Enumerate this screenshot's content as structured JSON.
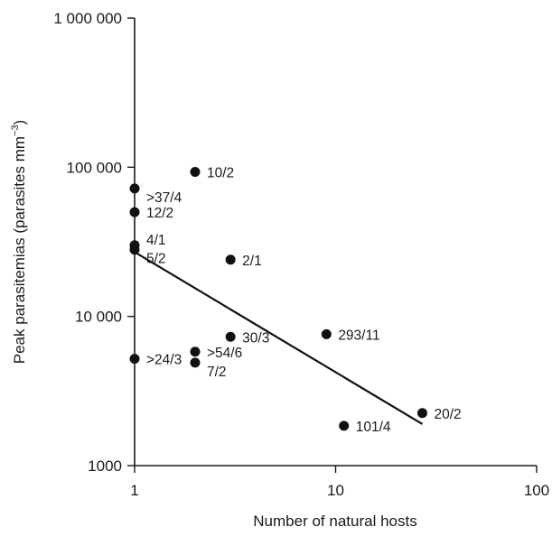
{
  "chart_data": {
    "type": "scatter",
    "xlabel": "Number of natural hosts",
    "ylabel_main": "Peak parasitemias (parasites mm",
    "ylabel_sup": "−3",
    "ylabel_close": ")",
    "xscale": "log",
    "yscale": "log",
    "xlim": [
      1,
      100
    ],
    "ylim": [
      1000,
      1000000
    ],
    "x_ticks": [
      {
        "value": 1,
        "label": "1"
      },
      {
        "value": 10,
        "label": "10"
      },
      {
        "value": 100,
        "label": "100"
      }
    ],
    "y_ticks": [
      {
        "value": 1000,
        "label": "1000"
      },
      {
        "value": 10000,
        "label": "10 000"
      },
      {
        "value": 100000,
        "label": "100 000"
      },
      {
        "value": 1000000,
        "label": "1 000 000"
      }
    ],
    "points": [
      {
        "x": 1,
        "y": 72000,
        "label": ">37/4",
        "anchor": "right-below"
      },
      {
        "x": 1,
        "y": 50000,
        "label": "12/2",
        "anchor": "right"
      },
      {
        "x": 1,
        "y": 30000,
        "label": "4/1",
        "anchor": "right-above"
      },
      {
        "x": 1,
        "y": 28000,
        "label": "5/2",
        "anchor": "right-below"
      },
      {
        "x": 1,
        "y": 5200,
        "label": ">24/3",
        "anchor": "right"
      },
      {
        "x": 2,
        "y": 93000,
        "label": "10/2",
        "anchor": "right"
      },
      {
        "x": 2,
        "y": 5800,
        "label": ">54/6",
        "anchor": "right"
      },
      {
        "x": 2,
        "y": 4900,
        "label": "7/2",
        "anchor": "right-below"
      },
      {
        "x": 3,
        "y": 24000,
        "label": "2/1",
        "anchor": "right"
      },
      {
        "x": 3,
        "y": 7300,
        "label": "30/3",
        "anchor": "right"
      },
      {
        "x": 9,
        "y": 7600,
        "label": "293/11",
        "anchor": "right"
      },
      {
        "x": 11,
        "y": 1850,
        "label": "101/4",
        "anchor": "right"
      },
      {
        "x": 27,
        "y": 2250,
        "label": "20/2",
        "anchor": "right"
      }
    ],
    "regression_line": {
      "x": [
        1,
        27
      ],
      "y": [
        27000,
        1900
      ]
    },
    "grid": false,
    "legend": "none"
  }
}
